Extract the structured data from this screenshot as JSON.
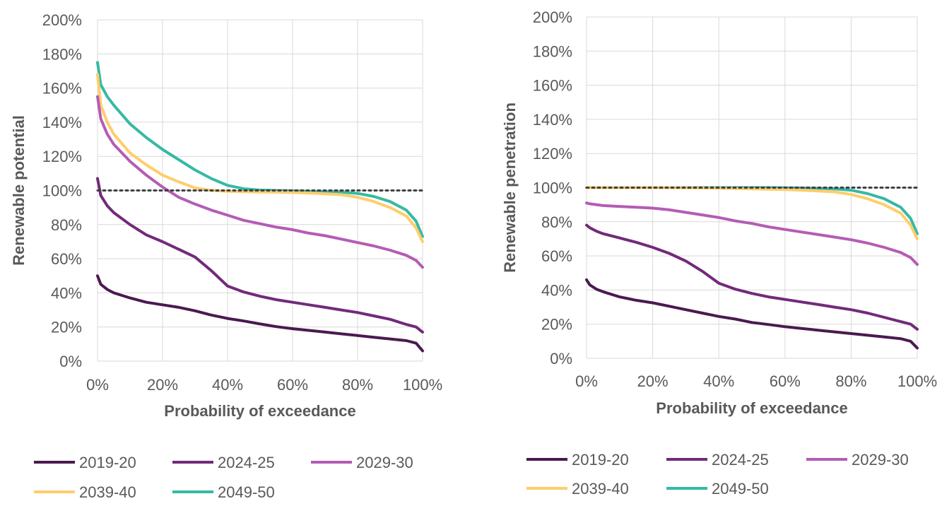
{
  "chart_data": [
    {
      "type": "line",
      "xlabel": "Probability of exceedance",
      "ylabel": "Renewable potential",
      "xlim": [
        0,
        100
      ],
      "ylim": [
        0,
        200
      ],
      "x_ticks": [
        "0%",
        "20%",
        "40%",
        "60%",
        "80%",
        "100%"
      ],
      "y_ticks": [
        "0%",
        "20%",
        "40%",
        "60%",
        "80%",
        "100%",
        "120%",
        "140%",
        "160%",
        "180%",
        "200%"
      ],
      "grid": true,
      "legend_position": "bottom",
      "reference_line": {
        "y": 100,
        "style": "dotted",
        "color": "#404040"
      },
      "x": [
        0,
        1,
        3,
        5,
        10,
        15,
        20,
        25,
        30,
        35,
        40,
        45,
        50,
        55,
        60,
        65,
        70,
        75,
        80,
        85,
        90,
        95,
        98,
        100
      ],
      "series": [
        {
          "name": "2019-20",
          "color": "#4a1a4f",
          "values": [
            50,
            45,
            42,
            40,
            37,
            34.5,
            33,
            31.5,
            29.5,
            27,
            25,
            23.5,
            21.8,
            20.2,
            19,
            18,
            17,
            16,
            15,
            14,
            13,
            12,
            10.5,
            6
          ]
        },
        {
          "name": "2024-25",
          "color": "#722a7a",
          "values": [
            107,
            97,
            91,
            87,
            80,
            74,
            70,
            65.5,
            61,
            53,
            44,
            40.5,
            38,
            36,
            34.5,
            33,
            31.5,
            30,
            28.5,
            26.5,
            24.5,
            21.5,
            20,
            17
          ]
        },
        {
          "name": "2029-30",
          "color": "#b45cb5",
          "values": [
            155,
            142,
            133,
            127,
            117,
            109,
            102,
            96,
            92,
            88.5,
            85.5,
            82.5,
            80.5,
            78.5,
            77,
            75,
            73.5,
            71.5,
            69.5,
            67.5,
            65,
            62,
            59,
            55
          ]
        },
        {
          "name": "2039-40",
          "color": "#ffcd6b",
          "values": [
            168,
            150,
            140,
            133,
            122,
            115,
            109,
            105,
            101.5,
            100,
            99.5,
            99.3,
            99.1,
            99,
            98.8,
            98.5,
            98,
            97.5,
            96,
            93.5,
            90,
            85,
            78,
            70
          ]
        },
        {
          "name": "2049-50",
          "color": "#36b9a4",
          "values": [
            175,
            162,
            155,
            150,
            139,
            131,
            124,
            118,
            112,
            107,
            103,
            101,
            100.2,
            100,
            99.8,
            99.5,
            99.3,
            99,
            98.3,
            96.5,
            93.5,
            88.5,
            82,
            73
          ]
        }
      ]
    },
    {
      "type": "line",
      "xlabel": "Probability of exceedance",
      "ylabel": "Renewable penetration",
      "xlim": [
        0,
        100
      ],
      "ylim": [
        0,
        200
      ],
      "x_ticks": [
        "0%",
        "20%",
        "40%",
        "60%",
        "80%",
        "100%"
      ],
      "y_ticks": [
        "0%",
        "20%",
        "40%",
        "60%",
        "80%",
        "100%",
        "120%",
        "140%",
        "160%",
        "180%",
        "200%"
      ],
      "grid": true,
      "legend_position": "bottom",
      "reference_line": {
        "y": 100,
        "style": "dotted",
        "color": "#404040"
      },
      "x": [
        0,
        1,
        3,
        5,
        10,
        15,
        20,
        25,
        30,
        35,
        40,
        45,
        50,
        55,
        60,
        65,
        70,
        75,
        80,
        85,
        90,
        95,
        98,
        100
      ],
      "series": [
        {
          "name": "2019-20",
          "color": "#4a1a4f",
          "values": [
            46,
            43,
            40.5,
            39,
            36,
            34,
            32.5,
            30.5,
            28.5,
            26.5,
            24.5,
            23,
            21,
            19.8,
            18.5,
            17.5,
            16.5,
            15.5,
            14.5,
            13.5,
            12.5,
            11.5,
            10,
            6
          ]
        },
        {
          "name": "2024-25",
          "color": "#722a7a",
          "values": [
            78,
            76.5,
            74.5,
            73,
            70.5,
            68,
            65,
            61.5,
            57,
            51,
            44,
            40.5,
            38,
            36,
            34.5,
            33,
            31.5,
            30,
            28.5,
            26.5,
            24,
            21.5,
            20,
            17
          ]
        },
        {
          "name": "2029-30",
          "color": "#b45cb5",
          "values": [
            91,
            90.5,
            90,
            89.5,
            89,
            88.5,
            88,
            87,
            85.5,
            84,
            82.5,
            80.5,
            79,
            77,
            75.5,
            74,
            72.5,
            71,
            69.5,
            67.5,
            65,
            62,
            59,
            55
          ]
        },
        {
          "name": "2039-40",
          "color": "#ffcd6b",
          "values": [
            100,
            100,
            100,
            100,
            100,
            100,
            100,
            100,
            99.9,
            99.8,
            99.7,
            99.5,
            99.3,
            99.1,
            98.9,
            98.5,
            98,
            97.5,
            96,
            93.5,
            90,
            85,
            78,
            70
          ]
        },
        {
          "name": "2049-50",
          "color": "#36b9a4",
          "values": [
            100,
            100,
            100,
            100,
            100,
            100,
            100,
            100,
            100,
            100,
            100,
            100,
            100,
            100,
            99.9,
            99.8,
            99.6,
            99.3,
            98.5,
            96.5,
            93.5,
            88.5,
            82,
            73
          ]
        }
      ]
    }
  ]
}
